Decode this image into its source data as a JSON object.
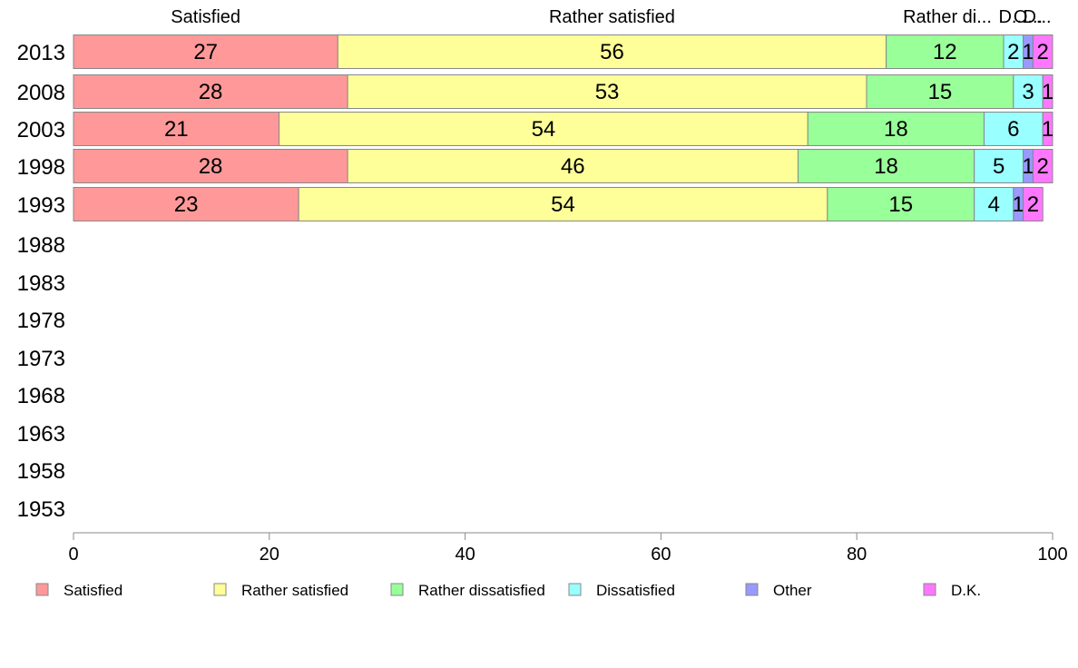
{
  "chart_data": {
    "type": "bar",
    "orientation": "horizontal",
    "stacked": true,
    "categories": [
      "2013",
      "2008",
      "2003",
      "1998",
      "1993",
      "1988",
      "1983",
      "1978",
      "1973",
      "1968",
      "1963",
      "1958",
      "1953"
    ],
    "series": [
      {
        "name": "Satisfied",
        "short": "Satisfied",
        "color": "#ff9999",
        "values": [
          27,
          28,
          21,
          28,
          23,
          null,
          null,
          null,
          null,
          null,
          null,
          null,
          null
        ],
        "labels": [
          "27",
          "28",
          "21",
          "28",
          "23",
          "",
          "",
          "",
          "",
          "",
          "",
          "",
          ""
        ]
      },
      {
        "name": "Rather satisfied",
        "short": "Rather satisfied",
        "color": "#ffff99",
        "values": [
          56,
          53,
          54,
          46,
          54,
          null,
          null,
          null,
          null,
          null,
          null,
          null,
          null
        ],
        "labels": [
          "56",
          "53",
          "54",
          "46",
          "54",
          "",
          "",
          "",
          "",
          "",
          "",
          "",
          ""
        ]
      },
      {
        "name": "Rather dissatisfied",
        "short": "Rather di...",
        "color": "#99ff99",
        "values": [
          12,
          15,
          18,
          18,
          15,
          null,
          null,
          null,
          null,
          null,
          null,
          null,
          null
        ],
        "labels": [
          "12",
          "15",
          "18",
          "18",
          "15",
          "",
          "",
          "",
          "",
          "",
          "",
          "",
          ""
        ]
      },
      {
        "name": "Dissatisfied",
        "short": "D...",
        "color": "#99ffff",
        "values": [
          2,
          3,
          6,
          5,
          4,
          null,
          null,
          null,
          null,
          null,
          null,
          null,
          null
        ],
        "labels": [
          "2",
          "3",
          "6",
          "5",
          "4",
          "",
          "",
          "",
          "",
          "",
          "",
          "",
          ""
        ]
      },
      {
        "name": "Other",
        "short": "O...",
        "color": "#9999ff",
        "values": [
          1,
          0,
          0,
          1,
          1,
          null,
          null,
          null,
          null,
          null,
          null,
          null,
          null
        ],
        "labels": [
          "1",
          "",
          "",
          "1",
          "1",
          "",
          "",
          "",
          "",
          "",
          "",
          "",
          ""
        ]
      },
      {
        "name": "D.K.",
        "short": "D...",
        "color": "#ff77ff",
        "values": [
          2,
          1,
          1,
          2,
          2,
          null,
          null,
          null,
          null,
          null,
          null,
          null,
          null
        ],
        "labels": [
          "2",
          "1",
          "1",
          "2",
          "2",
          "",
          "",
          "",
          "",
          "",
          "",
          "",
          ""
        ]
      }
    ],
    "xlim": [
      0,
      100
    ],
    "xticks": [
      "0",
      "20",
      "40",
      "60",
      "80",
      "100"
    ],
    "legend_position": "bottom",
    "grid": false
  }
}
